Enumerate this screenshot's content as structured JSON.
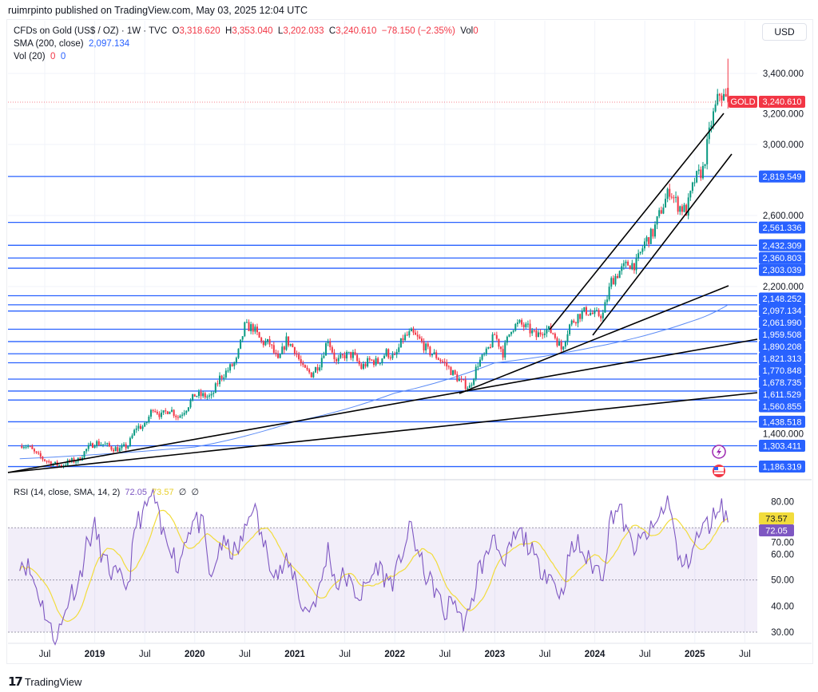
{
  "published": "ruimrpinto published on TradingView.com, May 03, 2025 12:04 UTC",
  "legend": {
    "symbol": "CFDs on Gold (US$ / OZ) · 1W · TVC",
    "o_label": "O",
    "o": "3,318.620",
    "h_label": "H",
    "h": "3,353.040",
    "l_label": "L",
    "l": "3,202.033",
    "c_label": "C",
    "c": "3,240.610",
    "change": "−78.150 (−2.35%)",
    "vol_label": "Vol",
    "vol": "0",
    "sma_label": "SMA (200, close)",
    "sma_value": "2,097.134",
    "vol20_label": "Vol (20)",
    "vol20_a": "0",
    "vol20_b": "0"
  },
  "currency": "USD",
  "price_tag": {
    "symbol": "GOLD",
    "value": "3,240.610"
  },
  "rsi_legend": {
    "label": "RSI (14, close, SMA, 14, 2)",
    "rsi": "72.05",
    "sma": "73.57",
    "x1": "∅",
    "x2": "∅"
  },
  "branding": "TradingView",
  "colors": {
    "up": "#089981",
    "down": "#f23645",
    "level": "#2962ff",
    "sma": "#5b8bf5",
    "rsi": "#7e57c2",
    "rsi_sma": "#f2dc3c"
  },
  "chart_data": [
    {
      "type": "candlestick",
      "title": "CFDs on Gold (US$ / OZ) · 1W · TVC",
      "x_ticks": [
        "Jul",
        "2019",
        "Jul",
        "2020",
        "Jul",
        "2021",
        "Jul",
        "2022",
        "Jul",
        "2023",
        "Jul",
        "2024",
        "Jul",
        "2025",
        "Jul"
      ],
      "y_ticks": [
        "3,400.000",
        "3,200.000",
        "3,000.000",
        "2,600.000",
        "2,200.000",
        "1,400.000"
      ],
      "ylim": [
        1150,
        3480
      ],
      "monthly_close_start": "2018-04",
      "monthly_close_approx": [
        1315,
        1300,
        1253,
        1224,
        1201,
        1192,
        1215,
        1222,
        1282,
        1321,
        1313,
        1292,
        1283,
        1305,
        1409,
        1413,
        1520,
        1472,
        1513,
        1464,
        1517,
        1589,
        1585,
        1577,
        1686,
        1730,
        1781,
        1975,
        1968,
        1886,
        1879,
        1776,
        1898,
        1847,
        1734,
        1708,
        1769,
        1907,
        1770,
        1814,
        1814,
        1743,
        1783,
        1774,
        1829,
        1797,
        1909,
        1937,
        1897,
        1837,
        1807,
        1766,
        1711,
        1660,
        1633,
        1768,
        1824,
        1928,
        1827,
        1969,
        1990,
        1963,
        1919,
        1965,
        1940,
        1849,
        1983,
        2036,
        2063,
        2039,
        2044,
        2230,
        2286,
        2327,
        2326,
        2447,
        2503,
        2634,
        2744,
        2657,
        2625,
        2798,
        2858,
        3124,
        3288,
        3240
      ],
      "last_bar": {
        "open": 3318.62,
        "high": 3353.04,
        "low": 3202.033,
        "close": 3240.61
      },
      "sma200_approx": [
        [
          0,
          1230
        ],
        [
          21,
          1296
        ],
        [
          33,
          1440
        ],
        [
          45,
          1600
        ],
        [
          57,
          1770
        ],
        [
          69,
          1860
        ],
        [
          81,
          2010
        ],
        [
          85,
          2097
        ]
      ],
      "horizontal_levels": [
        "2,819.549",
        "2,561.336",
        "2,432.309",
        "2,360.803",
        "2,303.039",
        "2,148.252",
        "2,097.134",
        "2,061.990",
        "1,959.508",
        "1,890.208",
        "1,821.313",
        "1,770.848",
        "1,678.735",
        "1,611.529",
        "1,560.855",
        "1,438.518",
        "1,303.411",
        "1,186.319"
      ]
    },
    {
      "type": "line",
      "title": "RSI (14, close, SMA, 14, 2)",
      "y_ticks": [
        "80.00",
        "70.00",
        "60.00",
        "50.00",
        "40.00",
        "30.00"
      ],
      "ylim": [
        25,
        85
      ],
      "band": [
        30,
        70
      ],
      "rsi_monthly_approx": [
        58,
        55,
        47,
        38,
        28,
        32,
        45,
        48,
        63,
        70,
        58,
        53,
        50,
        48,
        72,
        76,
        84,
        68,
        65,
        54,
        68,
        73,
        70,
        48,
        64,
        62,
        60,
        68,
        80,
        66,
        58,
        52,
        56,
        52,
        38,
        40,
        46,
        62,
        48,
        52,
        46,
        44,
        50,
        56,
        50,
        50,
        62,
        70,
        58,
        50,
        46,
        36,
        44,
        34,
        36,
        54,
        58,
        70,
        52,
        64,
        68,
        64,
        56,
        54,
        50,
        44,
        60,
        64,
        58,
        55,
        53,
        75,
        78,
        66,
        62,
        67,
        69,
        76,
        81,
        57,
        56,
        64,
        70,
        72,
        80,
        72
      ],
      "rsi_last": "72.05",
      "rsi_sma_last": "73.57"
    }
  ]
}
